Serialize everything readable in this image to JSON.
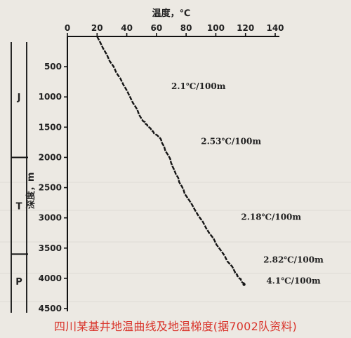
{
  "chart_data": {
    "type": "line",
    "title": "",
    "xlabel": "温度，℃",
    "ylabel": "深度，m",
    "xlim": [
      0,
      140
    ],
    "ylim": [
      0,
      4500
    ],
    "xticks": [
      0,
      20,
      40,
      60,
      80,
      100,
      120,
      140
    ],
    "yticks": [
      500,
      1000,
      1500,
      2000,
      2500,
      3000,
      3500,
      4000,
      4500
    ],
    "series": [
      {
        "points": [
          {
            "x": 20,
            "y": 0
          },
          {
            "x": 51,
            "y": 1400
          },
          {
            "x": 63,
            "y": 1700
          },
          {
            "x": 79,
            "y": 2600
          },
          {
            "x": 113,
            "y": 3900
          },
          {
            "x": 119,
            "y": 4100
          }
        ]
      }
    ],
    "gradient_labels": [
      {
        "text": "2.1℃/100m",
        "x": 70,
        "y": 870
      },
      {
        "text": "2.53℃/100m",
        "x": 90,
        "y": 1780
      },
      {
        "text": "2.18℃/100m",
        "x": 117,
        "y": 3030
      },
      {
        "text": "2.82℃/100m",
        "x": 132,
        "y": 3740
      },
      {
        "text": "4.1℃/100m",
        "x": 134,
        "y": 4090
      }
    ],
    "strata": [
      {
        "label": "J",
        "from": 0,
        "to": 2000
      },
      {
        "label": "T",
        "from": 2000,
        "to": 3600
      },
      {
        "label": "P",
        "from": 3600,
        "to": 4500
      }
    ]
  },
  "caption": "四川某基井地温曲线及地温梯度(据7002队资料)"
}
